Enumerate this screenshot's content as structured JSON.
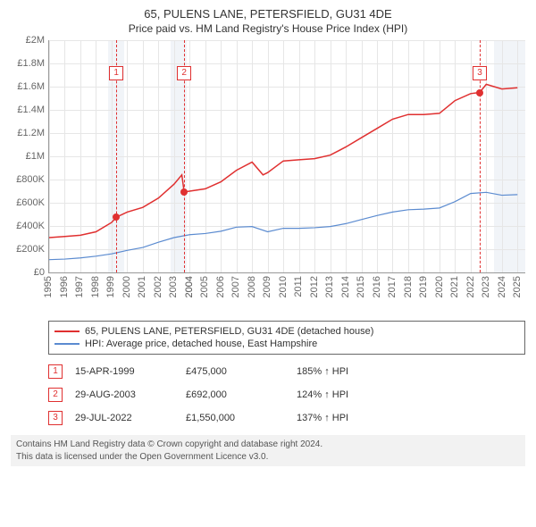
{
  "title": {
    "main": "65, PULENS LANE, PETERSFIELD, GU31 4DE",
    "sub": "Price paid vs. HM Land Registry's House Price Index (HPI)"
  },
  "chart": {
    "type": "line",
    "background_color": "#ffffff",
    "grid_color": "#e6e6e6",
    "axis_color": "#999999",
    "label_color": "#666666",
    "label_fontsize": 11,
    "xlim": [
      1995,
      2025.5
    ],
    "ylim": [
      0,
      2000000
    ],
    "yticks": [
      {
        "v": 0,
        "label": "£0"
      },
      {
        "v": 200000,
        "label": "£200K"
      },
      {
        "v": 400000,
        "label": "£400K"
      },
      {
        "v": 600000,
        "label": "£600K"
      },
      {
        "v": 800000,
        "label": "£800K"
      },
      {
        "v": 1000000,
        "label": "£1M"
      },
      {
        "v": 1200000,
        "label": "£1.2M"
      },
      {
        "v": 1400000,
        "label": "£1.4M"
      },
      {
        "v": 1600000,
        "label": "£1.6M"
      },
      {
        "v": 1800000,
        "label": "£1.8M"
      },
      {
        "v": 2000000,
        "label": "£2M"
      }
    ],
    "xticks": [
      1995,
      1996,
      1997,
      1998,
      1999,
      2000,
      2001,
      2002,
      2003,
      2004,
      2004,
      2005,
      2006,
      2007,
      2008,
      2009,
      2010,
      2011,
      2012,
      2013,
      2014,
      2015,
      2016,
      2017,
      2018,
      2019,
      2020,
      2021,
      2022,
      2023,
      2024,
      2025
    ],
    "bands": [
      {
        "from": 1998.8,
        "to": 1999.8,
        "color": "#eef2f7"
      },
      {
        "from": 2002.8,
        "to": 2003.8,
        "color": "#eef2f7"
      },
      {
        "from": 2023.5,
        "to": 2025.5,
        "color": "#eef2f7"
      }
    ],
    "event_markers": [
      {
        "n": "1",
        "x": 1999.3,
        "box_y": 1780000
      },
      {
        "n": "2",
        "x": 2003.65,
        "box_y": 1780000
      },
      {
        "n": "3",
        "x": 2022.58,
        "box_y": 1780000
      }
    ],
    "series": [
      {
        "name": "property",
        "color": "#e03030",
        "line_width": 1.5,
        "points": [
          [
            1995,
            300000
          ],
          [
            1996,
            310000
          ],
          [
            1997,
            320000
          ],
          [
            1998,
            350000
          ],
          [
            1999,
            430000
          ],
          [
            1999.3,
            475000
          ],
          [
            2000,
            520000
          ],
          [
            2001,
            560000
          ],
          [
            2002,
            640000
          ],
          [
            2003,
            760000
          ],
          [
            2003.5,
            840000
          ],
          [
            2003.65,
            692000
          ],
          [
            2004,
            700000
          ],
          [
            2005,
            720000
          ],
          [
            2006,
            780000
          ],
          [
            2007,
            880000
          ],
          [
            2008,
            950000
          ],
          [
            2008.7,
            840000
          ],
          [
            2009,
            860000
          ],
          [
            2010,
            960000
          ],
          [
            2011,
            970000
          ],
          [
            2012,
            980000
          ],
          [
            2013,
            1010000
          ],
          [
            2014,
            1080000
          ],
          [
            2015,
            1160000
          ],
          [
            2016,
            1240000
          ],
          [
            2017,
            1320000
          ],
          [
            2018,
            1360000
          ],
          [
            2019,
            1360000
          ],
          [
            2020,
            1370000
          ],
          [
            2021,
            1480000
          ],
          [
            2022,
            1540000
          ],
          [
            2022.58,
            1550000
          ],
          [
            2023,
            1620000
          ],
          [
            2024,
            1580000
          ],
          [
            2025,
            1590000
          ]
        ],
        "dots": [
          {
            "x": 1999.3,
            "y": 475000
          },
          {
            "x": 2003.65,
            "y": 692000
          },
          {
            "x": 2022.58,
            "y": 1550000
          }
        ]
      },
      {
        "name": "hpi",
        "color": "#5b8bd0",
        "line_width": 1.2,
        "points": [
          [
            1995,
            110000
          ],
          [
            1996,
            115000
          ],
          [
            1997,
            125000
          ],
          [
            1998,
            140000
          ],
          [
            1999,
            160000
          ],
          [
            2000,
            190000
          ],
          [
            2001,
            215000
          ],
          [
            2002,
            260000
          ],
          [
            2003,
            300000
          ],
          [
            2004,
            325000
          ],
          [
            2005,
            335000
          ],
          [
            2006,
            355000
          ],
          [
            2007,
            390000
          ],
          [
            2008,
            395000
          ],
          [
            2009,
            350000
          ],
          [
            2010,
            380000
          ],
          [
            2011,
            380000
          ],
          [
            2012,
            385000
          ],
          [
            2013,
            395000
          ],
          [
            2014,
            420000
          ],
          [
            2015,
            455000
          ],
          [
            2016,
            490000
          ],
          [
            2017,
            520000
          ],
          [
            2018,
            540000
          ],
          [
            2019,
            545000
          ],
          [
            2020,
            555000
          ],
          [
            2021,
            610000
          ],
          [
            2022,
            680000
          ],
          [
            2023,
            690000
          ],
          [
            2024,
            665000
          ],
          [
            2025,
            670000
          ]
        ]
      }
    ]
  },
  "legend": {
    "items": [
      {
        "color": "#e03030",
        "label": "65, PULENS LANE, PETERSFIELD, GU31 4DE (detached house)"
      },
      {
        "color": "#5b8bd0",
        "label": "HPI: Average price, detached house, East Hampshire"
      }
    ]
  },
  "events": [
    {
      "n": "1",
      "date": "15-APR-1999",
      "price": "£475,000",
      "hpi": "185% ↑ HPI"
    },
    {
      "n": "2",
      "date": "29-AUG-2003",
      "price": "£692,000",
      "hpi": "124% ↑ HPI"
    },
    {
      "n": "3",
      "date": "29-JUL-2022",
      "price": "£1,550,000",
      "hpi": "137% ↑ HPI"
    }
  ],
  "footer": {
    "line1": "Contains HM Land Registry data © Crown copyright and database right 2024.",
    "line2": "This data is licensed under the Open Government Licence v3.0."
  }
}
